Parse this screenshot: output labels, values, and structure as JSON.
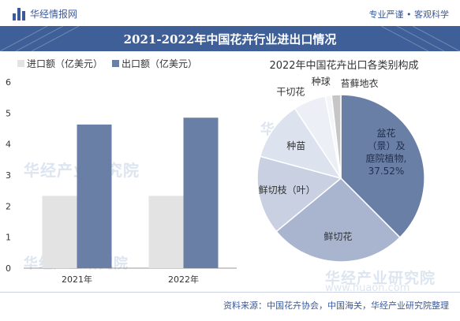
{
  "header": {
    "logo_text": "华经情报网",
    "tagline": "专业严谨 • 客观科学",
    "title": "2021-2022年中国花卉行业进出口情况"
  },
  "watermark": {
    "text": "华经产业研究院",
    "url": "www.huaon.com"
  },
  "footer": {
    "source": "资料来源：中国花卉协会，中国海关，华经产业研究院整理"
  },
  "colors": {
    "brand": "#3f5f98",
    "import_bar": "#e3e3e3",
    "export_bar": "#6a7fa6"
  },
  "chart_data": [
    {
      "type": "bar",
      "categories": [
        "2021年",
        "2022年"
      ],
      "series": [
        {
          "name": "进口额（亿美元）",
          "values": [
            2.33,
            2.33
          ],
          "color": "#e3e3e3"
        },
        {
          "name": "出口额（亿美元）",
          "values": [
            4.63,
            4.85
          ],
          "color": "#6a7fa6"
        }
      ],
      "ylim": [
        0,
        6
      ],
      "yticks": [
        0,
        1,
        2,
        3,
        4,
        5,
        6
      ],
      "legend": "top-left",
      "grid": false
    },
    {
      "type": "pie",
      "title": "2022年中国花卉出口各类别构成",
      "slices": [
        {
          "label": "盆花（景）及庭院植物,",
          "value": 37.52,
          "value_label": "37.52%",
          "color": "#6a7fa6"
        },
        {
          "label": "鲜切花",
          "value": 26.5,
          "color": "#a9b5cf"
        },
        {
          "label": "鲜切枝（叶）",
          "value": 15.2,
          "color": "#c8d0e1"
        },
        {
          "label": "种苗",
          "value": 11.5,
          "color": "#dde3ee"
        },
        {
          "label": "干切花",
          "value": 6.3,
          "color": "#ecf0f6"
        },
        {
          "label": "种球",
          "value": 1.2,
          "color": "#f4f6fa"
        },
        {
          "label": "苔藓地衣",
          "value": 1.78,
          "color": "#c6c6c6"
        }
      ]
    }
  ]
}
